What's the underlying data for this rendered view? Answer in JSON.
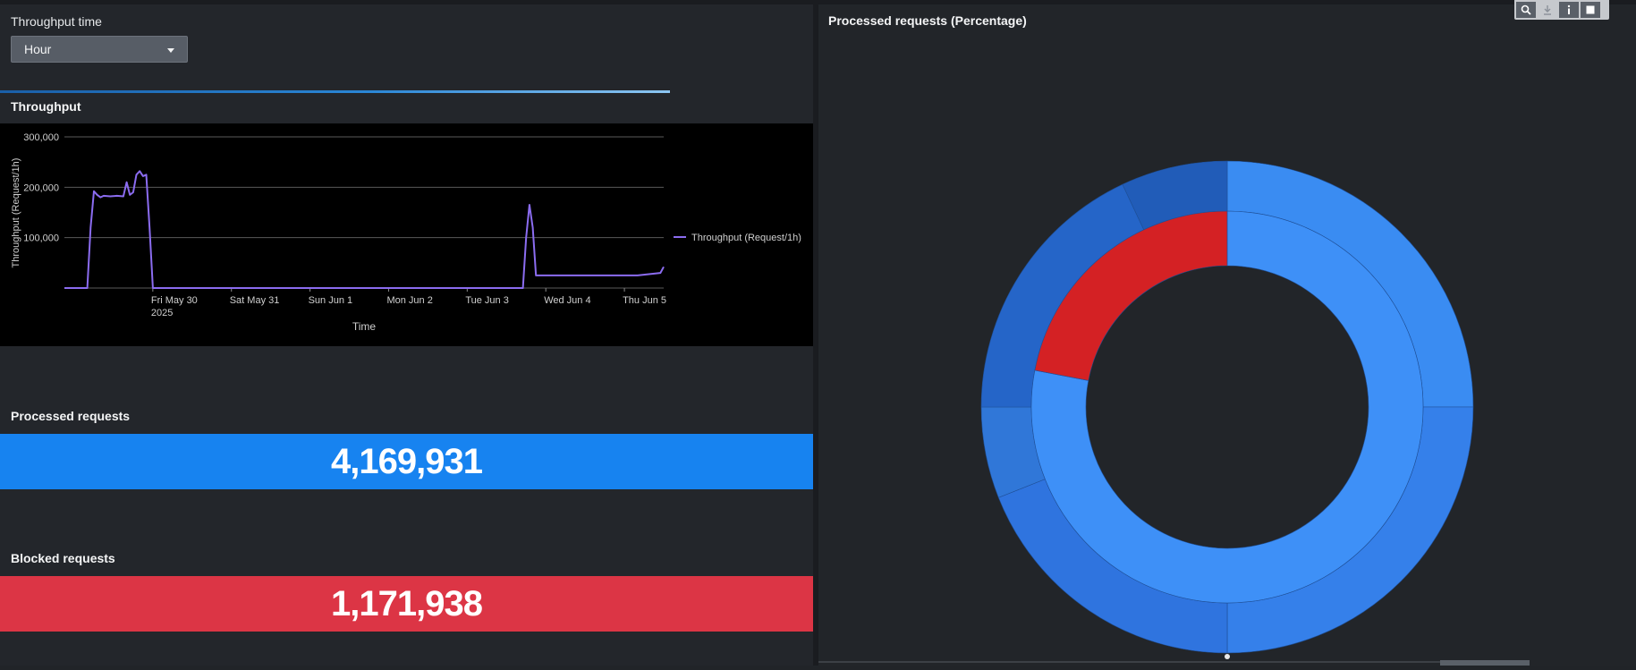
{
  "left": {
    "throughput_time_label": "Throughput time",
    "dropdown_value": "Hour",
    "throughput_title": "Throughput",
    "processed_title": "Processed requests",
    "processed_value": "4,169,931",
    "blocked_title": "Blocked requests",
    "blocked_value": "1,171,938"
  },
  "right": {
    "title": "Processed requests (Percentage)"
  },
  "toolbar": {
    "icons": [
      "search-icon",
      "download-icon",
      "info-icon",
      "fullscreen-icon"
    ]
  },
  "colors": {
    "processed": "#1783f0",
    "blocked": "#dc3545",
    "line": "#8b6cf0"
  },
  "chart_data": [
    {
      "type": "line",
      "title": "Throughput",
      "xlabel": "Time",
      "ylabel": "Throughput (Request/1h)",
      "ylim": [
        0,
        300000
      ],
      "yticks": [
        "100,000",
        "200,000",
        "300,000"
      ],
      "xticks": [
        "Fri May 30",
        "Sat May 31",
        "Sun Jun 1",
        "Mon Jun 2",
        "Tue Jun 3",
        "Wed Jun 4",
        "Thu Jun 5"
      ],
      "xtick_year": "2025",
      "legend": "right",
      "grid": true,
      "series": [
        {
          "name": "Throughput (Request/1h)",
          "x": [
            0,
            6,
            7,
            8,
            9,
            10,
            11,
            12,
            14,
            16,
            18,
            19,
            20,
            21,
            22,
            23,
            24,
            25,
            26,
            27,
            28,
            29,
            30.5,
            31,
            31.5,
            140,
            141,
            142,
            143,
            144,
            145,
            150,
            152,
            154,
            155,
            156,
            157,
            158,
            160,
            165,
            170,
            175,
            182,
            183
          ],
          "y": [
            0,
            0,
            0,
            120000,
            192000,
            185000,
            180000,
            183000,
            182000,
            183000,
            182000,
            210000,
            185000,
            190000,
            225000,
            232000,
            222000,
            225000,
            120000,
            0,
            0,
            0,
            0,
            0,
            0,
            0,
            100000,
            165000,
            120000,
            25000,
            25000,
            25000,
            25000,
            25000,
            25000,
            25000,
            25000,
            25000,
            25000,
            25000,
            25000,
            25000,
            30000,
            42000
          ]
        }
      ]
    },
    {
      "type": "pie",
      "title": "Processed requests (Percentage)",
      "series": [
        {
          "name": "inner",
          "values": [
            78,
            22
          ],
          "colors": [
            "#3e90f7",
            "#d42124"
          ]
        },
        {
          "name": "outer",
          "values": [
            25,
            25,
            19,
            6,
            18,
            7
          ],
          "colors": [
            "#3a8cf2",
            "#3580ea",
            "#2f74df",
            "#3077d8",
            "#2565c8",
            "#215cb8"
          ]
        }
      ]
    }
  ]
}
